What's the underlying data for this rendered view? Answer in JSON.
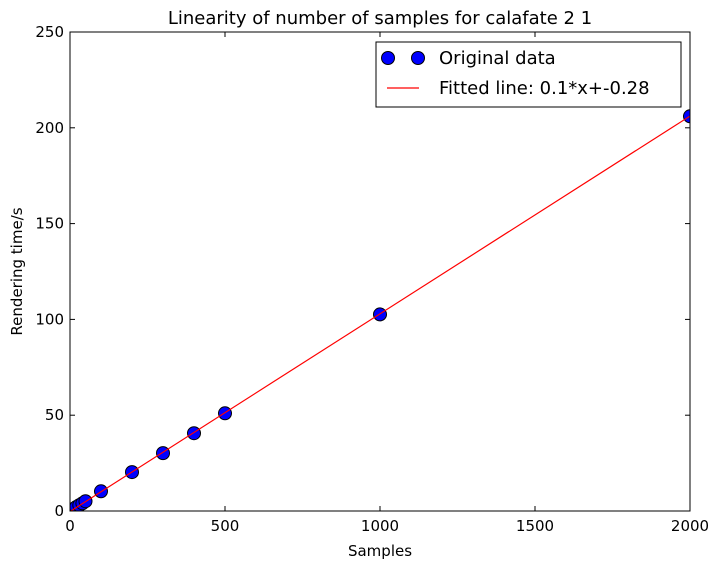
{
  "chart_data": {
    "type": "scatter",
    "title": "Linearity of number of samples for calafate 2 1",
    "xlabel": "Samples",
    "ylabel": "Rendering time/s",
    "xlim": [
      0,
      2000
    ],
    "ylim": [
      0,
      250
    ],
    "xticks": [
      "0",
      "500",
      "1000",
      "1500",
      "2000"
    ],
    "yticks": [
      "0",
      "50",
      "100",
      "150",
      "200",
      "250"
    ],
    "grid": false,
    "legend_position": "top-right",
    "series": [
      {
        "name": "Original data",
        "kind": "markers",
        "color": "#0000ff",
        "x": [
          1,
          2,
          5,
          10,
          20,
          30,
          40,
          50,
          100,
          200,
          300,
          400,
          500,
          1000,
          2000
        ],
        "y": [
          0.1,
          0.2,
          0.5,
          1.0,
          2.0,
          3.0,
          4.0,
          5.1,
          10.3,
          20.3,
          30.2,
          40.6,
          51.0,
          102.6,
          206.0
        ]
      },
      {
        "name": "Fitted line: 0.1*x+-0.28",
        "kind": "line",
        "color": "#ff0000",
        "slope": 0.1032,
        "intercept": -0.28
      }
    ]
  }
}
